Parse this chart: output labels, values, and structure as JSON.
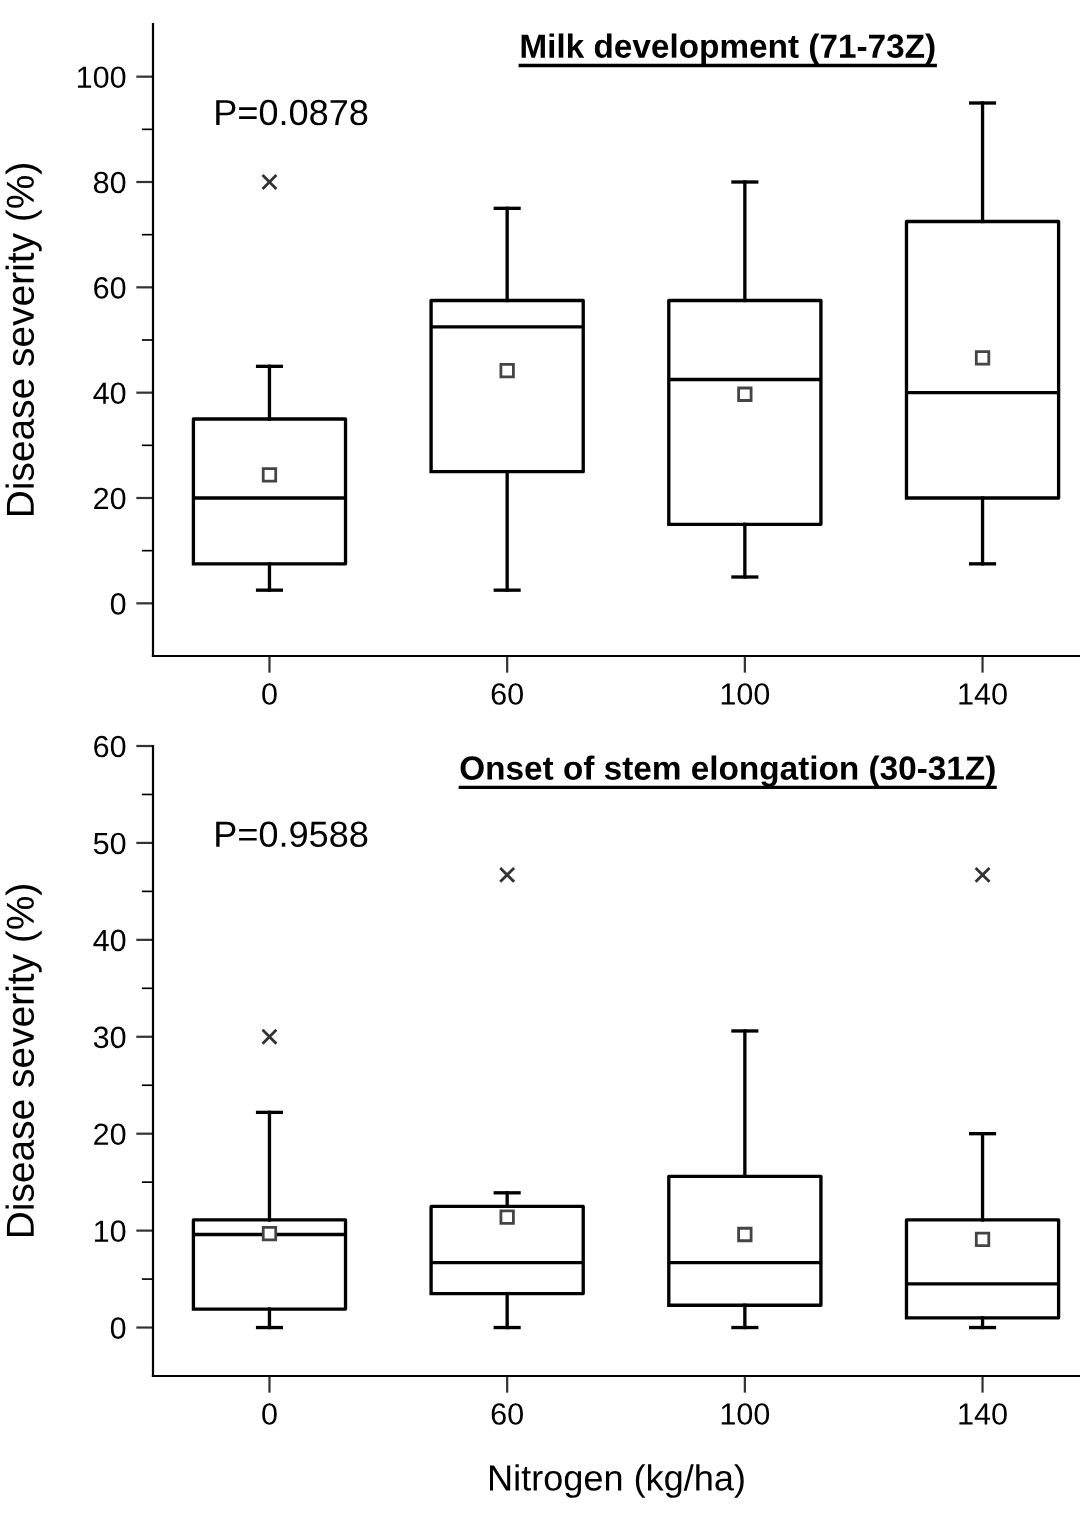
{
  "chart_data": [
    {
      "type": "box",
      "title": "Milk development (71-73Z)",
      "ylabel": "Disease severity (%)",
      "annotations": [
        "P=0.0878"
      ],
      "categories": [
        "0",
        "60",
        "100",
        "140"
      ],
      "boxes": [
        {
          "low": 2.5,
          "q1": 7.5,
          "median": 20,
          "q3": 35,
          "high": 45,
          "mean": 24.4,
          "outliers": [
            80
          ]
        },
        {
          "low": 2.5,
          "q1": 25,
          "median": 52.5,
          "q3": 57.5,
          "high": 75,
          "mean": 44.2
        },
        {
          "low": 5,
          "q1": 15,
          "median": 42.5,
          "q3": 57.5,
          "high": 80,
          "mean": 39.7
        },
        {
          "low": 7.5,
          "q1": 20,
          "median": 40,
          "q3": 72.5,
          "high": 95,
          "mean": 46.6
        }
      ],
      "ylim": [
        -10,
        110
      ],
      "yticks": [
        0,
        20,
        40,
        60,
        80,
        100
      ],
      "grid": false
    },
    {
      "type": "box",
      "title": "Onset of stem elongation (30-31Z)",
      "ylabel": "Disease severity (%)",
      "xlabel": "Nitrogen (kg/ha)",
      "annotations": [
        "P=0.9588"
      ],
      "categories": [
        "0",
        "60",
        "100",
        "140"
      ],
      "boxes": [
        {
          "low": 0,
          "q1": 1.9,
          "median": 9.6,
          "q3": 11.1,
          "high": 22.2,
          "mean": 9.7,
          "outliers": [
            30
          ]
        },
        {
          "low": 0,
          "q1": 3.5,
          "median": 6.7,
          "q3": 12.5,
          "high": 13.9,
          "mean": 11.4,
          "outliers": [
            46.7
          ]
        },
        {
          "low": 0,
          "q1": 2.3,
          "median": 6.7,
          "q3": 15.6,
          "high": 30.6,
          "mean": 9.6
        },
        {
          "low": 0,
          "q1": 1,
          "median": 4.5,
          "q3": 11.1,
          "high": 20,
          "mean": 9.1,
          "outliers": [
            46.7
          ]
        }
      ],
      "ylim": [
        -5,
        60
      ],
      "yticks": [
        0,
        10,
        20,
        30,
        40,
        50,
        60
      ],
      "grid": false
    }
  ]
}
